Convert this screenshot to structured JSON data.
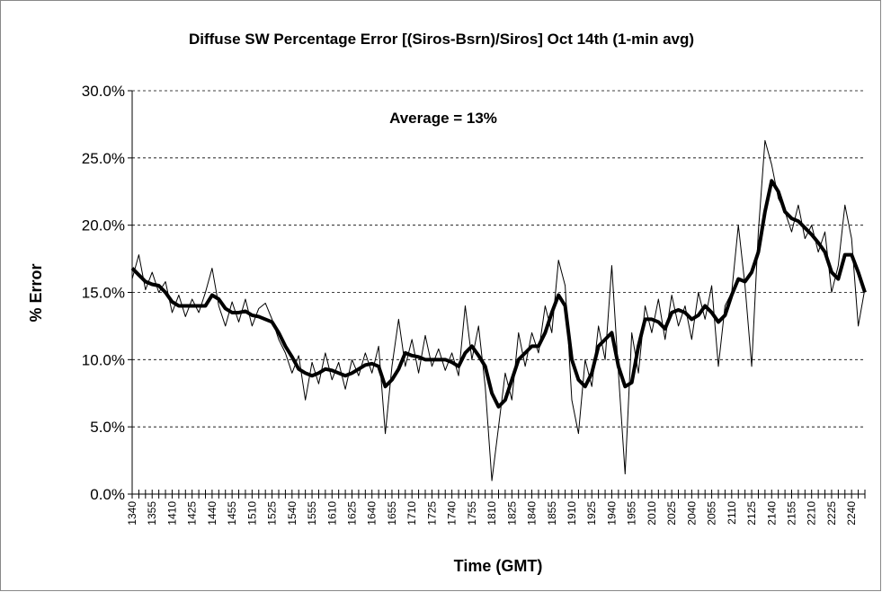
{
  "chart_data": {
    "type": "line",
    "title": "Diffuse SW Percentage Error [(Siros-Bsrn)/Siros] Oct 14th (1-min avg)",
    "annotation": "Average = 13%",
    "x_label": "Time (GMT)",
    "y_label": "% Error",
    "categories": [
      "1340",
      null,
      null,
      "1355",
      null,
      null,
      "1410",
      null,
      null,
      "1425",
      null,
      null,
      "1440",
      null,
      null,
      "1455",
      null,
      null,
      "1510",
      null,
      null,
      "1525",
      null,
      null,
      "1540",
      null,
      null,
      "1555",
      null,
      null,
      "1610",
      null,
      null,
      "1625",
      null,
      null,
      "1640",
      null,
      null,
      "1655",
      null,
      null,
      "1710",
      null,
      null,
      "1725",
      null,
      null,
      "1740",
      null,
      null,
      "1755",
      null,
      null,
      "1810",
      null,
      null,
      "1825",
      null,
      null,
      "1840",
      null,
      null,
      "1855",
      null,
      null,
      "1910",
      null,
      null,
      "1925",
      null,
      null,
      "1940",
      null,
      null,
      "1955",
      null,
      null,
      "2010",
      null,
      null,
      "2025",
      null,
      null,
      "2040",
      null,
      null,
      "2055",
      null,
      null,
      "2110",
      null,
      null,
      "2125",
      null,
      null,
      "2140",
      null,
      null,
      "2155",
      null,
      null,
      "2210",
      null,
      null,
      "2225",
      null,
      null,
      "2240",
      null,
      null
    ],
    "series": [
      {
        "color": "#000000",
        "width": 1,
        "values": [
          16.0,
          17.8,
          15.2,
          16.5,
          15.0,
          15.8,
          13.5,
          14.8,
          13.2,
          14.5,
          13.5,
          15.0,
          16.8,
          14.0,
          12.5,
          14.3,
          12.8,
          14.5,
          12.5,
          13.8,
          14.2,
          13.0,
          11.5,
          10.5,
          9.0,
          10.3,
          7.0,
          9.8,
          8.2,
          10.5,
          8.5,
          9.8,
          7.8,
          10.0,
          8.8,
          10.5,
          9.0,
          11.0,
          4.5,
          9.5,
          13.0,
          9.5,
          11.5,
          9.0,
          11.8,
          9.5,
          10.8,
          9.2,
          10.5,
          8.8,
          14.0,
          10.0,
          12.5,
          8.0,
          1.0,
          5.0,
          9.0,
          7.0,
          12.0,
          9.5,
          12.0,
          10.5,
          14.0,
          12.0,
          17.4,
          15.5,
          7.0,
          4.5,
          10.0,
          8.0,
          12.5,
          10.0,
          17.0,
          9.0,
          1.5,
          12.0,
          9.0,
          14.0,
          12.0,
          14.5,
          11.5,
          14.8,
          12.5,
          14.0,
          11.5,
          15.0,
          13.0,
          15.5,
          9.5,
          14.0,
          15.0,
          20.0,
          15.5,
          9.5,
          19.5,
          26.3,
          24.5,
          22.0,
          21.0,
          19.5,
          21.5,
          19.0,
          20.0,
          18.0,
          19.5,
          15.0,
          17.0,
          21.5,
          19.0,
          12.5,
          15.3
        ]
      },
      {
        "color": "#000000",
        "width": 4,
        "values": [
          16.8,
          16.3,
          15.8,
          15.6,
          15.5,
          15.0,
          14.3,
          14.0,
          14.0,
          14.0,
          14.0,
          14.0,
          14.8,
          14.5,
          13.8,
          13.5,
          13.5,
          13.6,
          13.3,
          13.2,
          13.0,
          12.8,
          12.0,
          11.0,
          10.2,
          9.3,
          9.0,
          8.8,
          9.0,
          9.3,
          9.2,
          9.0,
          8.8,
          9.0,
          9.3,
          9.6,
          9.7,
          9.5,
          8.0,
          8.5,
          9.3,
          10.5,
          10.3,
          10.2,
          10.0,
          10.0,
          10.0,
          10.0,
          9.8,
          9.5,
          10.5,
          11.0,
          10.3,
          9.5,
          7.5,
          6.5,
          7.0,
          8.5,
          10.0,
          10.5,
          11.0,
          11.0,
          12.0,
          13.5,
          14.8,
          14.0,
          10.0,
          8.5,
          8.0,
          9.0,
          11.0,
          11.5,
          12.0,
          9.5,
          8.0,
          8.3,
          11.0,
          13.0,
          13.0,
          12.8,
          12.3,
          13.5,
          13.7,
          13.5,
          13.0,
          13.3,
          14.0,
          13.5,
          12.8,
          13.3,
          14.8,
          16.0,
          15.8,
          16.5,
          18.0,
          21.0,
          23.3,
          22.5,
          21.0,
          20.5,
          20.3,
          19.8,
          19.3,
          18.7,
          18.0,
          16.5,
          16.0,
          17.8,
          17.8,
          16.5,
          15.0
        ]
      }
    ],
    "ylim": [
      0,
      30
    ],
    "yticks": [
      {
        "value": 0,
        "label": "0.0%"
      },
      {
        "value": 5,
        "label": "5.0%"
      },
      {
        "value": 10,
        "label": "10.0%"
      },
      {
        "value": 15,
        "label": "15.0%"
      },
      {
        "value": 20,
        "label": "20.0%"
      },
      {
        "value": 25,
        "label": "25.0%"
      },
      {
        "value": 30,
        "label": "30.0%"
      }
    ],
    "grid": true
  }
}
